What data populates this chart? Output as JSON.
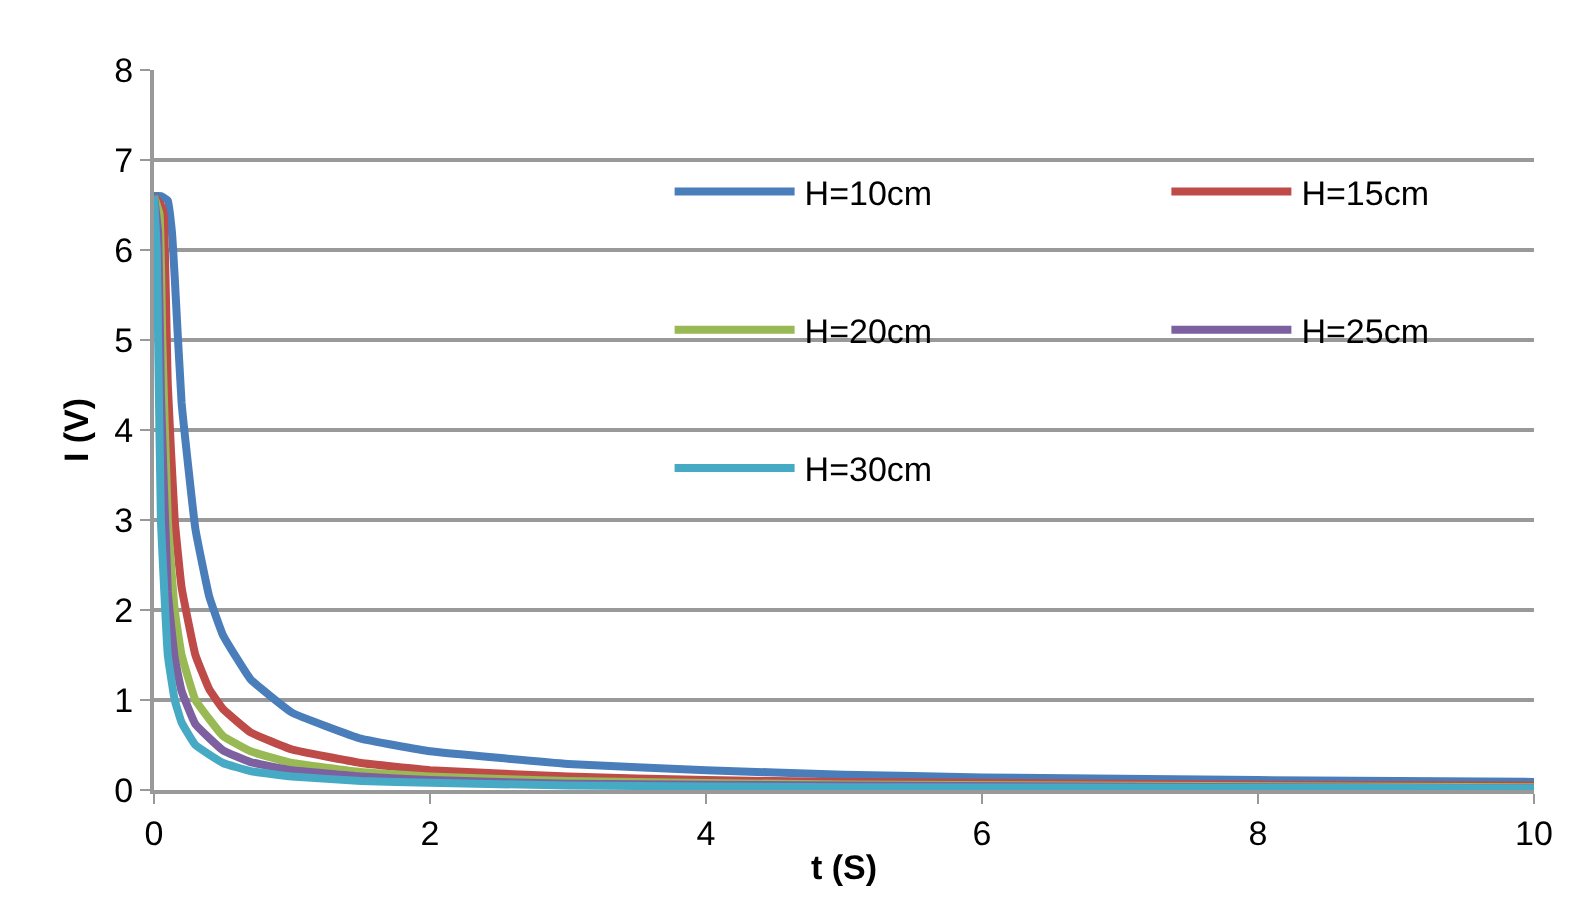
{
  "chart_data": {
    "type": "line",
    "xlabel": "t (S)",
    "ylabel": "I (V)",
    "xlim": [
      0,
      10
    ],
    "ylim": [
      0,
      8
    ],
    "xticks": [
      0,
      2,
      4,
      6,
      8,
      10
    ],
    "yticks": [
      0,
      1,
      2,
      3,
      4,
      5,
      6,
      7,
      8
    ],
    "grid": "y",
    "legend": "top right",
    "marker": "none",
    "line_style": "solid",
    "series": [
      {
        "name": "H=10cm",
        "color": "#4a7ebb",
        "x": [
          0,
          0.05,
          0.1,
          0.13,
          0.15,
          0.2,
          0.3,
          0.4,
          0.5,
          0.7,
          1,
          1.5,
          2,
          3,
          4,
          5,
          6,
          8,
          10
        ],
        "values": [
          6.6,
          6.6,
          6.55,
          6.2,
          5.7,
          4.3,
          2.9,
          2.15,
          1.72,
          1.23,
          0.86,
          0.57,
          0.43,
          0.29,
          0.22,
          0.17,
          0.14,
          0.11,
          0.09
        ]
      },
      {
        "name": "H=15cm",
        "color": "#be4b48",
        "x": [
          0,
          0.05,
          0.07,
          0.1,
          0.15,
          0.2,
          0.3,
          0.4,
          0.5,
          0.7,
          1,
          1.5,
          2,
          3,
          4,
          5,
          6,
          8,
          10
        ],
        "values": [
          6.6,
          6.5,
          6.4,
          4.5,
          3.0,
          2.25,
          1.5,
          1.12,
          0.9,
          0.64,
          0.45,
          0.3,
          0.22,
          0.15,
          0.11,
          0.09,
          0.08,
          0.06,
          0.05
        ]
      },
      {
        "name": "H=20cm",
        "color": "#98b954",
        "x": [
          0,
          0.04,
          0.06,
          0.1,
          0.15,
          0.2,
          0.3,
          0.5,
          0.7,
          1,
          1.5,
          2,
          3,
          5,
          10
        ],
        "values": [
          6.6,
          6.4,
          5.0,
          3.0,
          2.0,
          1.5,
          1.0,
          0.6,
          0.43,
          0.3,
          0.2,
          0.15,
          0.1,
          0.06,
          0.03
        ]
      },
      {
        "name": "H=25cm",
        "color": "#7d60a0",
        "x": [
          0,
          0.03,
          0.05,
          0.1,
          0.15,
          0.2,
          0.3,
          0.5,
          0.7,
          1,
          1.5,
          2,
          3,
          5,
          10
        ],
        "values": [
          6.6,
          6.2,
          4.4,
          2.2,
          1.47,
          1.1,
          0.73,
          0.44,
          0.31,
          0.22,
          0.15,
          0.11,
          0.07,
          0.05,
          0.02
        ]
      },
      {
        "name": "H=30cm",
        "color": "#46aac5",
        "x": [
          0,
          0.02,
          0.03,
          0.05,
          0.1,
          0.15,
          0.2,
          0.3,
          0.5,
          0.7,
          1,
          1.5,
          2,
          3,
          5,
          10
        ],
        "values": [
          6.6,
          6.0,
          5.0,
          3.0,
          1.5,
          1.0,
          0.75,
          0.5,
          0.3,
          0.21,
          0.15,
          0.1,
          0.08,
          0.05,
          0.03,
          0.02
        ]
      }
    ]
  }
}
